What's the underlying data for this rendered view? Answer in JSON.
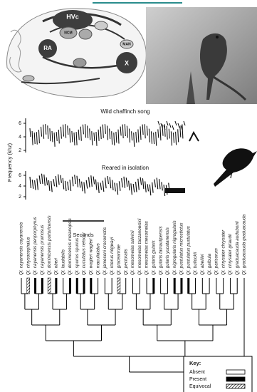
{
  "figure": {
    "brain_labels": [
      "HVc",
      "RA",
      "X",
      "MAN",
      "NCM"
    ],
    "song_panel": {
      "wild_title": "Wild chaffinch song",
      "isolation_title": "Reared in isolation",
      "y_axis_label": "Frequency (khz)",
      "wild_ticks": [
        "6",
        "4",
        "2"
      ],
      "isolation_ticks": [
        "6",
        "4",
        "2"
      ],
      "scale_label": "Seconds"
    },
    "species": [
      "Ql. cayanensis cayanensis",
      "Ql. chrysocephalus",
      "Ql. cayanensis periporphyrus",
      "Ql. cayanensis pruinosus",
      "Ql. dominicensis portoricensis",
      "Ql. oberi",
      "Ql. laudabilis",
      "Ql. dominicensis melanopsis",
      "Ql. spurius spurius",
      "Ql. cucullatus nelsoni",
      "Ql. wagleri wagleri",
      "Ql. maculialatus",
      "Ql. jamesoni crocomotis",
      "Ql. icterus ridgwayi",
      "Ql. graceannae",
      "Ql. pectoralis",
      "Ql. mesomelas salvinii",
      "Ql. mesomelas taczanowskii",
      "Ql. mesomelas mesomelas",
      "Ql. gularis gularis",
      "Ql. gularis tamaulipensis",
      "Ql. gularis yucatanensis",
      "Ql. nigrogularis nigrogularis",
      "Ql. pustulatus microstictus",
      "Ql. pustulatus pustulatus",
      "Ql. bullockii",
      "Ql. abeillei",
      "Ql. galbula",
      "Ql. parisorum",
      "Ql. chrysater chrysater",
      "Ql. chrysater giraudii",
      "Ql. graduacauda audubonii",
      "Ql. graduacauda graduacauda"
    ],
    "key": {
      "title": "Key:",
      "items": [
        "Absent",
        "Present",
        "Equivocal"
      ]
    }
  }
}
